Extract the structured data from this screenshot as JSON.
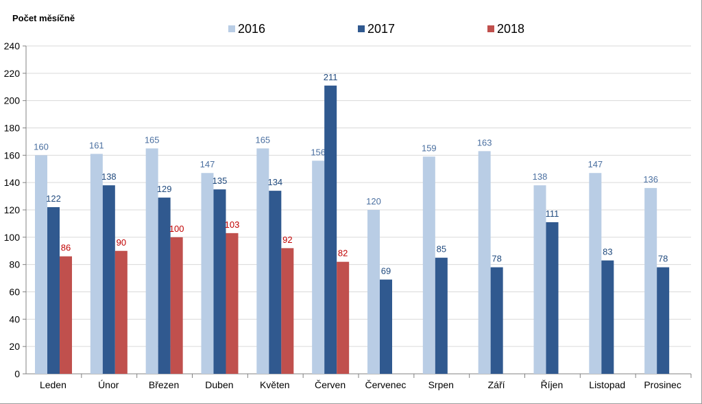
{
  "chart_data": {
    "type": "bar",
    "title": "",
    "ylabel": "Počet měsíčně",
    "xlabel": "",
    "ylim": [
      0,
      240
    ],
    "ytick_step": 20,
    "yticks": [
      "0",
      "20",
      "40",
      "60",
      "80",
      "100",
      "120",
      "140",
      "160",
      "180",
      "200",
      "220",
      "240"
    ],
    "grid": true,
    "legend_position": "top",
    "categories": [
      "Leden",
      "Únor",
      "Březen",
      "Duben",
      "Květen",
      "Červen",
      "Červenec",
      "Srpen",
      "Září",
      "Říjen",
      "Listopad",
      "Prosinec"
    ],
    "series": [
      {
        "name": "2016",
        "color": "#b9cde5",
        "label_color": "#4a6fa0",
        "values": [
          160,
          161,
          165,
          147,
          165,
          156,
          120,
          159,
          163,
          138,
          147,
          136
        ]
      },
      {
        "name": "2017",
        "color": "#30598f",
        "label_color": "#1f497d",
        "values": [
          122,
          138,
          129,
          135,
          134,
          211,
          69,
          85,
          78,
          111,
          83,
          78
        ]
      },
      {
        "name": "2018",
        "color": "#c0504d",
        "label_color": "#c00000",
        "values": [
          86,
          90,
          100,
          103,
          92,
          82,
          null,
          null,
          null,
          null,
          null,
          null
        ]
      }
    ]
  }
}
